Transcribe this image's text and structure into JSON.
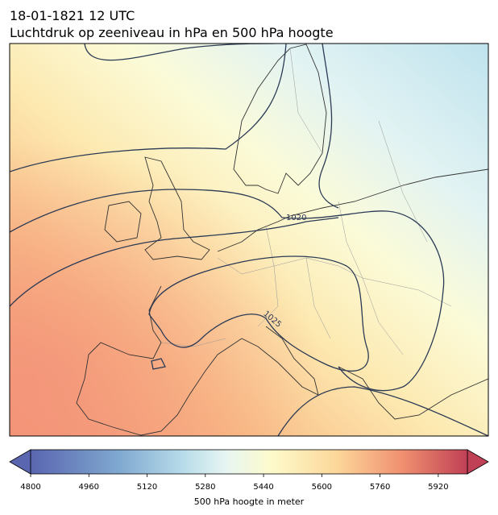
{
  "header": {
    "date": "18-01-1821 12 UTC",
    "title": "Luchtdruk op zeeniveau in hPa en 500 hPa hoogte"
  },
  "map": {
    "isobar_labels": [
      "1020",
      "1025"
    ]
  },
  "colorbar": {
    "range": [
      4800,
      6000
    ],
    "ticks": [
      4800,
      4960,
      5120,
      5280,
      5440,
      5600,
      5760,
      5920
    ],
    "label": "500 hPa hoogte in meter"
  }
}
